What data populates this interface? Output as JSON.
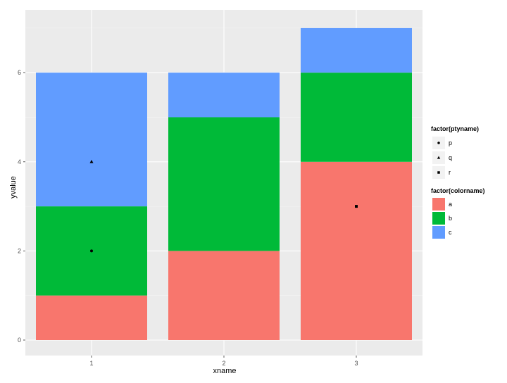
{
  "chart_data": {
    "type": "bar",
    "stacked": true,
    "title": "",
    "xlabel": "xname",
    "ylabel": "yvalue",
    "categories": [
      "1",
      "2",
      "3"
    ],
    "ylim": [
      0,
      7.3
    ],
    "y_ticks": [
      "0",
      "2",
      "4",
      "6"
    ],
    "grid": true,
    "series": [
      {
        "name": "a",
        "color": "#F8766D",
        "values": [
          1,
          2,
          4
        ]
      },
      {
        "name": "b",
        "color": "#00BA38",
        "values": [
          2,
          3,
          2
        ]
      },
      {
        "name": "c",
        "color": "#619CFF",
        "values": [
          3,
          1,
          1
        ]
      }
    ],
    "points": [
      {
        "x": "1",
        "y": 2,
        "shape": "p"
      },
      {
        "x": "1",
        "y": 4,
        "shape": "q"
      },
      {
        "x": "3",
        "y": 3,
        "shape": "r"
      }
    ],
    "legends": [
      {
        "title": "factor(ptyname)",
        "kind": "shape",
        "entries": [
          "p",
          "q",
          "r"
        ]
      },
      {
        "title": "factor(colorname)",
        "kind": "fill",
        "entries": [
          "a",
          "b",
          "c"
        ]
      }
    ],
    "legend_position": "right"
  },
  "colors": {
    "panel_background": "#EBEBEB",
    "grid_major": "#FFFFFF",
    "point": "#000000"
  }
}
